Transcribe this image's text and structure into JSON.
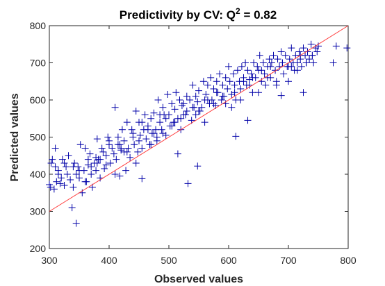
{
  "chart_data": {
    "type": "scatter",
    "title_main": "Predictivity by CV: Q",
    "title_sup": "2",
    "title_tail": " = 0.82",
    "xlabel": "Observed values",
    "ylabel": "Predicted values",
    "xlim": [
      300,
      800
    ],
    "ylim": [
      200,
      800
    ],
    "xticks": [
      "300",
      "400",
      "500",
      "600",
      "700",
      "800"
    ],
    "yticks": [
      "200",
      "300",
      "400",
      "500",
      "600",
      "700",
      "800"
    ],
    "grid": false,
    "marker": "+",
    "colors": {
      "points": "#0000a8",
      "line": "#ff3a3a",
      "axes": "#262626"
    },
    "reference_line": {
      "x": [
        300,
        800
      ],
      "y": [
        300,
        800
      ]
    },
    "points": {
      "x": [
        300,
        302,
        305,
        308,
        310,
        312,
        315,
        318,
        320,
        322,
        325,
        328,
        330,
        332,
        335,
        338,
        340,
        342,
        345,
        348,
        350,
        352,
        355,
        358,
        360,
        362,
        365,
        368,
        370,
        372,
        375,
        378,
        380,
        382,
        385,
        388,
        390,
        392,
        395,
        398,
        400,
        402,
        405,
        408,
        410,
        412,
        415,
        418,
        420,
        422,
        425,
        428,
        430,
        432,
        435,
        438,
        440,
        442,
        445,
        448,
        450,
        452,
        455,
        458,
        460,
        462,
        465,
        468,
        470,
        472,
        475,
        478,
        480,
        482,
        485,
        488,
        490,
        492,
        495,
        498,
        500,
        502,
        505,
        508,
        510,
        512,
        515,
        518,
        520,
        522,
        525,
        528,
        530,
        532,
        535,
        538,
        540,
        542,
        545,
        548,
        550,
        552,
        555,
        558,
        560,
        562,
        565,
        568,
        570,
        572,
        575,
        578,
        580,
        582,
        585,
        588,
        590,
        592,
        595,
        598,
        600,
        602,
        605,
        608,
        610,
        612,
        615,
        618,
        620,
        622,
        625,
        628,
        630,
        632,
        635,
        638,
        640,
        642,
        645,
        648,
        650,
        652,
        655,
        658,
        660,
        662,
        665,
        668,
        670,
        672,
        675,
        678,
        680,
        682,
        685,
        688,
        690,
        692,
        695,
        698,
        700,
        702,
        705,
        708,
        710,
        712,
        715,
        718,
        720,
        722,
        725,
        728,
        730,
        732,
        735,
        738,
        740,
        742,
        745,
        748,
        750,
        775,
        780,
        798,
        303,
        315,
        340,
        345,
        360,
        370,
        380,
        395,
        410,
        420,
        430,
        445,
        455,
        470,
        480,
        490,
        505,
        520,
        530,
        545,
        560,
        575,
        590,
        605,
        620,
        635,
        650,
        665,
        680,
        700,
        715,
        730,
        310,
        325,
        350,
        365,
        385,
        400,
        415,
        425,
        440,
        450,
        465,
        475,
        485,
        495,
        510,
        525,
        540,
        550,
        565,
        580,
        595,
        610,
        625,
        640,
        655,
        670,
        690,
        705,
        720,
        740,
        378,
        418,
        455,
        515,
        548,
        612,
        632,
        688,
        725
      ],
      "y": [
        372,
        365,
        440,
        360,
        470,
        380,
        410,
        375,
        390,
        440,
        370,
        420,
        400,
        450,
        385,
        310,
        365,
        430,
        268,
        420,
        390,
        480,
        350,
        410,
        470,
        380,
        425,
        455,
        400,
        365,
        430,
        410,
        495,
        440,
        390,
        470,
        460,
        415,
        425,
        500,
        490,
        430,
        470,
        455,
        580,
        440,
        500,
        480,
        465,
        520,
        490,
        410,
        540,
        470,
        445,
        520,
        510,
        480,
        570,
        460,
        540,
        505,
        470,
        520,
        560,
        495,
        530,
        480,
        550,
        510,
        565,
        520,
        490,
        600,
        540,
        520,
        580,
        560,
        505,
        615,
        560,
        530,
        590,
        540,
        575,
        620,
        550,
        600,
        520,
        585,
        590,
        560,
        610,
        375,
        600,
        545,
        640,
        580,
        610,
        595,
        625,
        570,
        580,
        650,
        600,
        615,
        640,
        590,
        660,
        600,
        630,
        585,
        650,
        620,
        670,
        600,
        640,
        610,
        660,
        630,
        690,
        650,
        615,
        670,
        640,
        600,
        680,
        650,
        630,
        690,
        660,
        700,
        640,
        680,
        655,
        670,
        620,
        700,
        660,
        690,
        680,
        720,
        650,
        700,
        670,
        640,
        690,
        710,
        660,
        700,
        720,
        680,
        650,
        710,
        690,
        730,
        700,
        670,
        720,
        690,
        650,
        710,
        740,
        700,
        680,
        720,
        700,
        730,
        710,
        690,
        740,
        720,
        700,
        730,
        710,
        750,
        720,
        700,
        740,
        730,
        745,
        700,
        745,
        740,
        430,
        400,
        420,
        400,
        380,
        420,
        430,
        450,
        400,
        470,
        460,
        430,
        540,
        480,
        500,
        510,
        530,
        550,
        570,
        560,
        540,
        590,
        610,
        580,
        600,
        640,
        620,
        660,
        640,
        690,
        680,
        700,
        420,
        430,
        410,
        440,
        440,
        480,
        480,
        460,
        500,
        490,
        520,
        510,
        560,
        550,
        540,
        560,
        580,
        570,
        600,
        620,
        590,
        620,
        650,
        660,
        680,
        690,
        700,
        690,
        720,
        720,
        445,
        395,
        388,
        455,
        422,
        502,
        545,
        612,
        620
      ]
    }
  }
}
